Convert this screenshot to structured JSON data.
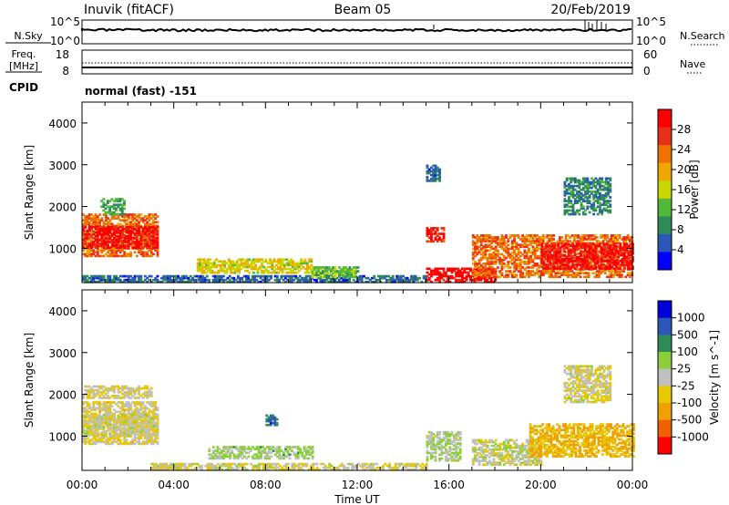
{
  "header": {
    "station": "Inuvik (fitACF)",
    "beam": "Beam 05",
    "date": "20/Feb/2019"
  },
  "strip_nsky": {
    "label": "N.Sky",
    "left_ticks": [
      "10^5",
      "10^0"
    ],
    "right_ticks": [
      "10^5",
      "10^0"
    ],
    "right_label": "N.Search"
  },
  "strip_freq": {
    "label_lines": [
      "Freq.",
      "[MHz]"
    ],
    "left_ticks": [
      "18",
      "8"
    ],
    "right_ticks": [
      "60",
      "0"
    ],
    "right_label": "Nave"
  },
  "cpid": {
    "label": "CPID",
    "value": "normal (fast) -151"
  },
  "colors": {
    "power_scale": [
      "#0000ff",
      "#2a57b8",
      "#2e8b57",
      "#52b83a",
      "#c8d700",
      "#f0a800",
      "#f07000",
      "#e83018",
      "#ff0000"
    ],
    "velocity_scale": [
      "#0000dd",
      "#2a57b8",
      "#2e8b57",
      "#8ccf3a",
      "#c0c0c0",
      "#e8c800",
      "#f0a000",
      "#f06000",
      "#ff0000"
    ]
  },
  "chart_data": [
    {
      "type": "heatmap",
      "panel": "power",
      "ylabel": "Slant Range [km]",
      "yticks": [
        "1000",
        "2000",
        "3000",
        "4000"
      ],
      "xticks": [],
      "xlim": [
        "00:00",
        "24:00"
      ],
      "ylim": [
        180,
        4500
      ],
      "colorbar": {
        "label": "Power [dB]",
        "ticks": [
          "28",
          "24",
          "20",
          "16",
          "12",
          "8",
          "4"
        ],
        "range": [
          0,
          30
        ]
      },
      "regions": [
        {
          "t0": 0.0,
          "t1": 3.3,
          "r0": 800,
          "r1": 1800,
          "v": 22
        },
        {
          "t0": 0.0,
          "t1": 3.3,
          "r0": 1000,
          "r1": 1500,
          "v": 28
        },
        {
          "t0": 0.8,
          "t1": 1.8,
          "r0": 1800,
          "r1": 2200,
          "v": 10
        },
        {
          "t0": 0.0,
          "t1": 15.0,
          "r0": 180,
          "r1": 350,
          "v": 6
        },
        {
          "t0": 5.0,
          "t1": 10.0,
          "r0": 400,
          "r1": 750,
          "v": 16
        },
        {
          "t0": 10.0,
          "t1": 12.0,
          "r0": 300,
          "r1": 550,
          "v": 12
        },
        {
          "t0": 15.0,
          "t1": 15.8,
          "r0": 1150,
          "r1": 1500,
          "v": 26
        },
        {
          "t0": 15.0,
          "t1": 18.0,
          "r0": 180,
          "r1": 500,
          "v": 29
        },
        {
          "t0": 17.0,
          "t1": 24.0,
          "r0": 300,
          "r1": 1300,
          "v": 22
        },
        {
          "t0": 20.0,
          "t1": 24.0,
          "r0": 500,
          "r1": 1100,
          "v": 28
        },
        {
          "t0": 21.0,
          "t1": 23.0,
          "r0": 1800,
          "r1": 2700,
          "v": 8
        },
        {
          "t0": 15.0,
          "t1": 15.6,
          "r0": 2600,
          "r1": 3000,
          "v": 6
        }
      ]
    },
    {
      "type": "heatmap",
      "panel": "velocity",
      "ylabel": "Slant Range [km]",
      "yticks": [
        "1000",
        "2000",
        "3000",
        "4000"
      ],
      "xticks": [
        "00:00",
        "04:00",
        "08:00",
        "12:00",
        "16:00",
        "20:00",
        "00:00"
      ],
      "xlabel": "Time UT",
      "xlim": [
        "00:00",
        "24:00"
      ],
      "ylim": [
        180,
        4500
      ],
      "colorbar": {
        "label": "Velocity [m s^-1]",
        "ticks": [
          "1000",
          "500",
          "100",
          "25",
          "-25",
          "-100",
          "-500",
          "-1000"
        ],
        "range": [
          -1200,
          1200
        ]
      },
      "regions": [
        {
          "t0": 0.0,
          "t1": 3.3,
          "r0": 800,
          "r1": 1800,
          "v": -150
        },
        {
          "t0": 0.0,
          "t1": 3.3,
          "r0": 1000,
          "r1": 1500,
          "v": -60
        },
        {
          "t0": 0.0,
          "t1": 3.0,
          "r0": 1900,
          "r1": 2200,
          "v": -130
        },
        {
          "t0": 3.0,
          "t1": 15.0,
          "r0": 180,
          "r1": 350,
          "v": -80
        },
        {
          "t0": 5.5,
          "t1": 10.0,
          "r0": 450,
          "r1": 750,
          "v": 160
        },
        {
          "t0": 8.0,
          "t1": 8.5,
          "r0": 1250,
          "r1": 1500,
          "v": 700
        },
        {
          "t0": 15.0,
          "t1": 16.5,
          "r0": 400,
          "r1": 1100,
          "v": 120
        },
        {
          "t0": 17.0,
          "t1": 20.0,
          "r0": 300,
          "r1": 900,
          "v": 5
        },
        {
          "t0": 19.5,
          "t1": 24.0,
          "r0": 500,
          "r1": 1300,
          "v": -400
        },
        {
          "t0": 21.0,
          "t1": 23.0,
          "r0": 1800,
          "r1": 2700,
          "v": -80
        }
      ]
    }
  ]
}
